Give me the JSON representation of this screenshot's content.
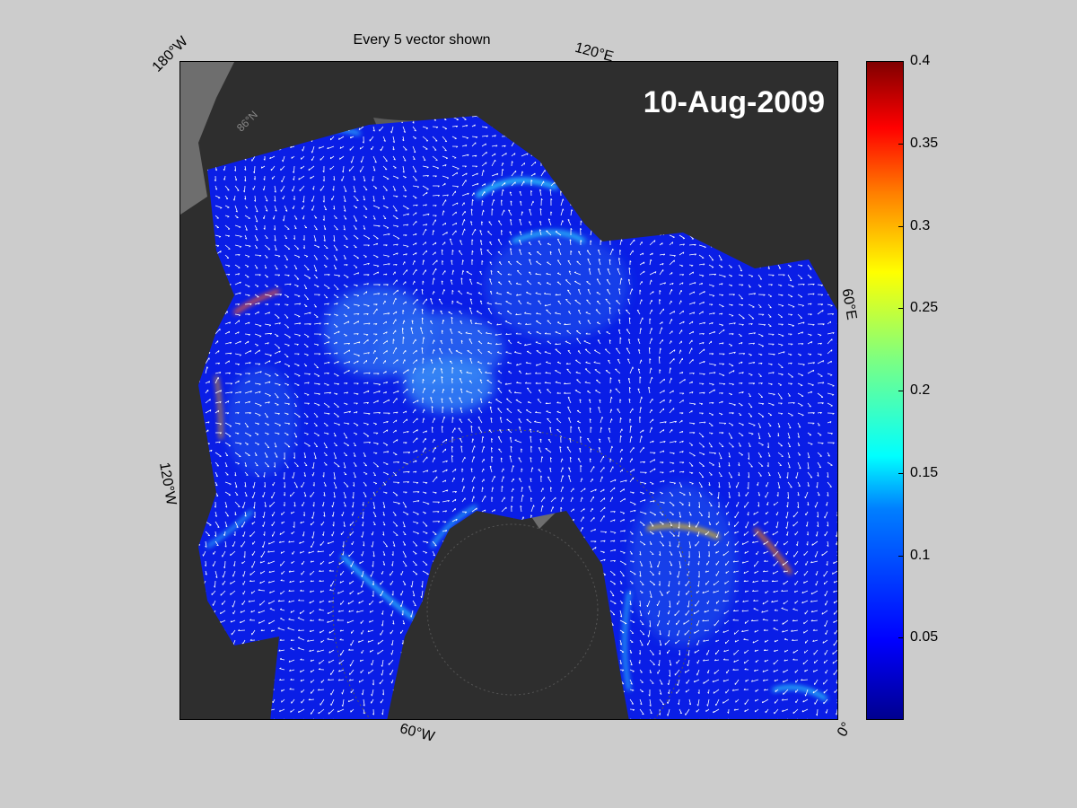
{
  "title": "Every 5 vector shown",
  "date": "10-Aug-2009",
  "longitude_labels": {
    "w180": "180°W",
    "e120": "120°E",
    "e60": "60°E",
    "w120": "120°W",
    "w60": "60°W",
    "zero": "0°"
  },
  "latitude_label": "86°N",
  "colorbar": {
    "colormap": "jet",
    "min": 0,
    "max": 0.4,
    "ticks": [
      "0.4",
      "0.35",
      "0.3",
      "0.25",
      "0.2",
      "0.15",
      "0.1",
      "0.05"
    ],
    "tick_values": [
      0.4,
      0.35,
      0.3,
      0.25,
      0.2,
      0.15,
      0.1,
      0.05
    ]
  },
  "colors": {
    "background": "#cccccc",
    "land": "#2e2e2e",
    "coast_shade": "#6e6e6e",
    "ocean_low": "#0a1ee6",
    "ocean_mid": "#2a6cf0",
    "vectors": "#ffffff"
  }
}
